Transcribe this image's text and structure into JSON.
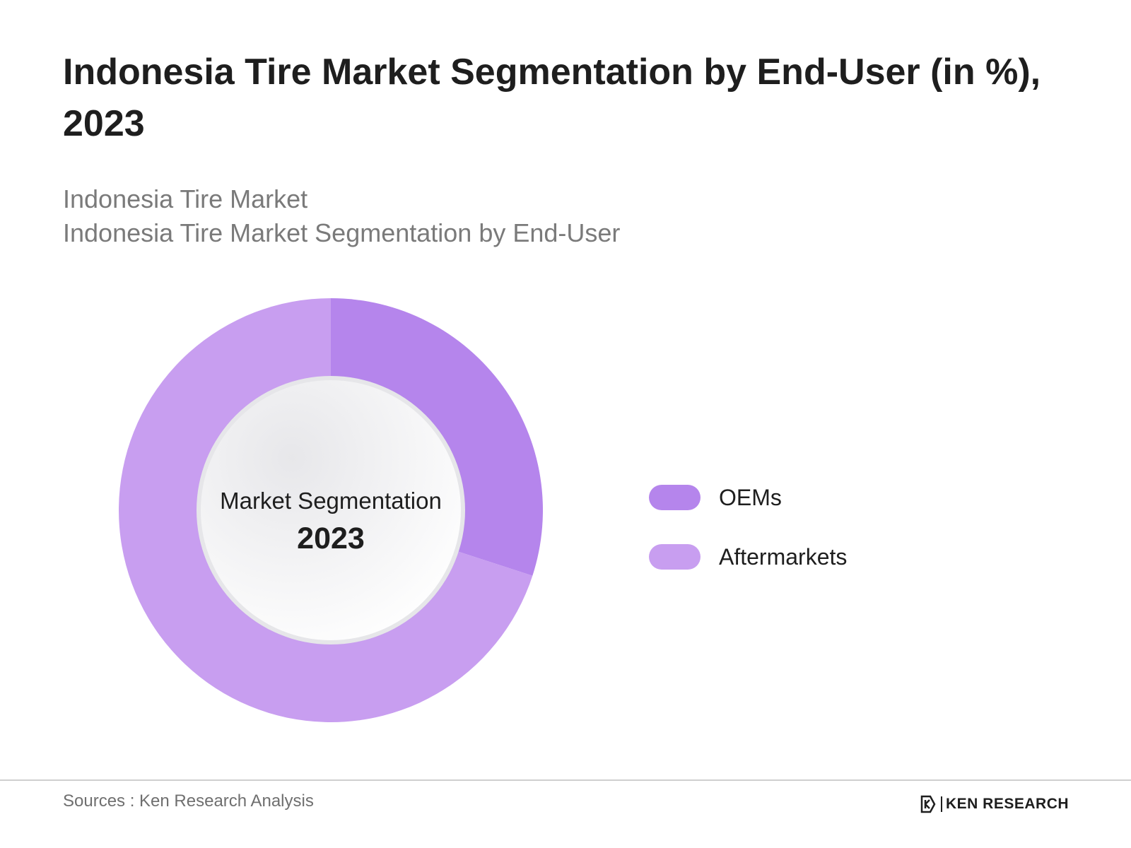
{
  "header": {
    "title": "Indonesia Tire Market Segmentation by End-User (in %), 2023",
    "subtitle_lines": [
      "Indonesia Tire Market",
      "Indonesia Tire Market Segmentation by End-User"
    ]
  },
  "chart_data": {
    "type": "pie",
    "donut": true,
    "categories": [
      "OEMs",
      "Aftermarkets"
    ],
    "values": [
      30,
      70
    ],
    "colors": [
      "#b585ec",
      "#c89ef0"
    ],
    "center_label": "Market Segmentation",
    "center_year": "2023",
    "legend_position": "right"
  },
  "footer": {
    "source": "Sources : Ken Research Analysis",
    "logo_text": "KEN RESEARCH"
  }
}
